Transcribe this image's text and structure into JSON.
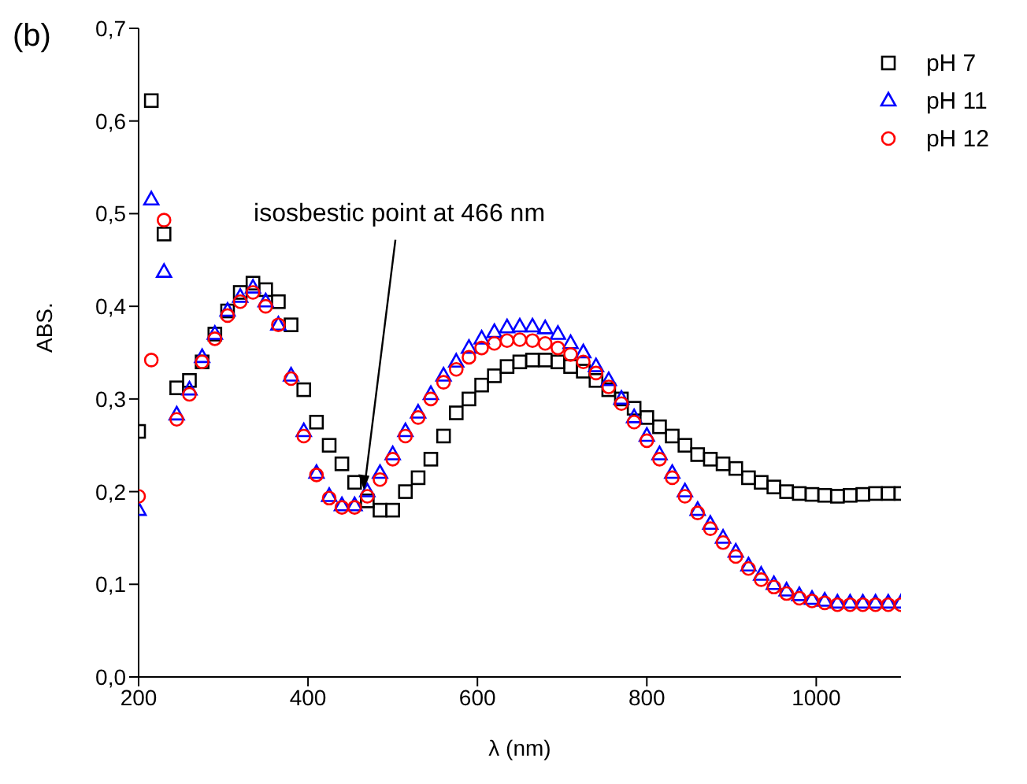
{
  "chart_data": {
    "type": "scatter",
    "xlabel": "λ (nm)",
    "ylabel": "ABS.",
    "annotations": [
      "(b)",
      {
        "text": "isosbestic point at 466 nm",
        "x": 466,
        "y": 0.2
      }
    ],
    "x": [
      200,
      215,
      230,
      245,
      260,
      275,
      290,
      305,
      320,
      335,
      350,
      365,
      380,
      395,
      410,
      425,
      440,
      455,
      470,
      485,
      500,
      515,
      530,
      545,
      560,
      575,
      590,
      605,
      620,
      635,
      650,
      665,
      680,
      695,
      710,
      725,
      740,
      755,
      770,
      785,
      800,
      815,
      830,
      845,
      860,
      875,
      890,
      905,
      920,
      935,
      950,
      965,
      980,
      995,
      1010,
      1025,
      1040,
      1055,
      1070,
      1085,
      1100
    ],
    "series": [
      {
        "name": "pH 7",
        "color": "#000000",
        "marker": "square",
        "values": [
          0.265,
          0.622,
          0.478,
          0.312,
          0.32,
          0.34,
          0.37,
          0.395,
          0.415,
          0.425,
          0.418,
          0.405,
          0.38,
          0.31,
          0.275,
          0.25,
          0.23,
          0.21,
          0.19,
          0.18,
          0.18,
          0.2,
          0.215,
          0.235,
          0.26,
          0.285,
          0.3,
          0.315,
          0.325,
          0.335,
          0.34,
          0.342,
          0.342,
          0.34,
          0.335,
          0.33,
          0.32,
          0.31,
          0.3,
          0.29,
          0.28,
          0.27,
          0.26,
          0.25,
          0.24,
          0.235,
          0.23,
          0.225,
          0.215,
          0.21,
          0.205,
          0.2,
          0.198,
          0.197,
          0.196,
          0.195,
          0.196,
          0.197,
          0.198,
          0.198,
          0.198
        ]
      },
      {
        "name": "pH 11",
        "color": "#0000ff",
        "marker": "triangle",
        "values": [
          0.18,
          0.515,
          0.437,
          0.283,
          0.31,
          0.345,
          0.37,
          0.395,
          0.41,
          0.42,
          0.405,
          0.38,
          0.325,
          0.265,
          0.22,
          0.195,
          0.185,
          0.185,
          0.2,
          0.22,
          0.24,
          0.265,
          0.285,
          0.305,
          0.325,
          0.34,
          0.355,
          0.365,
          0.372,
          0.377,
          0.378,
          0.378,
          0.376,
          0.37,
          0.36,
          0.35,
          0.335,
          0.32,
          0.3,
          0.28,
          0.26,
          0.24,
          0.22,
          0.2,
          0.18,
          0.165,
          0.15,
          0.135,
          0.12,
          0.11,
          0.1,
          0.093,
          0.088,
          0.084,
          0.082,
          0.08,
          0.08,
          0.08,
          0.08,
          0.08,
          0.08
        ]
      },
      {
        "name": "pH 12",
        "color": "#ff0000",
        "marker": "circle",
        "values": [
          0.195,
          0.342,
          0.493,
          0.278,
          0.305,
          0.34,
          0.365,
          0.39,
          0.405,
          0.415,
          0.4,
          0.38,
          0.322,
          0.26,
          0.218,
          0.193,
          0.183,
          0.183,
          0.195,
          0.213,
          0.235,
          0.26,
          0.28,
          0.3,
          0.318,
          0.332,
          0.345,
          0.355,
          0.36,
          0.363,
          0.364,
          0.363,
          0.36,
          0.355,
          0.348,
          0.34,
          0.328,
          0.313,
          0.295,
          0.275,
          0.255,
          0.235,
          0.215,
          0.195,
          0.177,
          0.16,
          0.145,
          0.13,
          0.117,
          0.105,
          0.097,
          0.09,
          0.085,
          0.082,
          0.08,
          0.078,
          0.078,
          0.078,
          0.078,
          0.078,
          0.078
        ]
      }
    ],
    "xlim": [
      200,
      1100
    ],
    "xticks": [
      200,
      400,
      600,
      800,
      1000
    ],
    "ylim": [
      0,
      0.7
    ],
    "yticks": [
      {
        "value": 0,
        "label": "0,0"
      },
      {
        "value": 0.1,
        "label": "0,1"
      },
      {
        "value": 0.2,
        "label": "0,2"
      },
      {
        "value": 0.3,
        "label": "0,3"
      },
      {
        "value": 0.4,
        "label": "0,4"
      },
      {
        "value": 0.5,
        "label": "0,5"
      },
      {
        "value": 0.6,
        "label": "0,6"
      },
      {
        "value": 0.7,
        "label": "0,7"
      }
    ],
    "legend": "top right"
  }
}
